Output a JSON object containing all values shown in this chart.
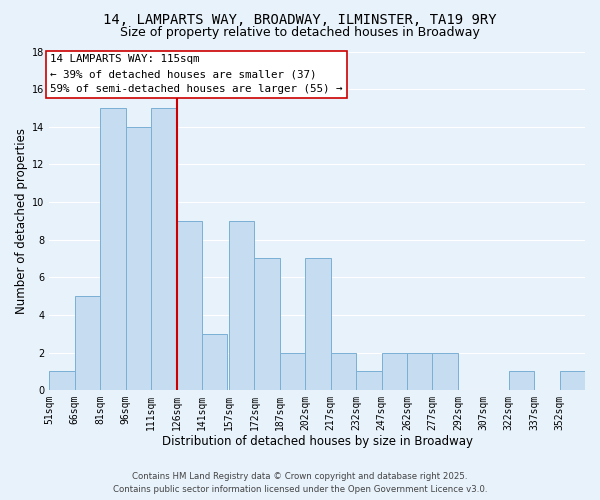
{
  "title": "14, LAMPARTS WAY, BROADWAY, ILMINSTER, TA19 9RY",
  "subtitle": "Size of property relative to detached houses in Broadway",
  "xlabel": "Distribution of detached houses by size in Broadway",
  "ylabel": "Number of detached properties",
  "footer_line1": "Contains HM Land Registry data © Crown copyright and database right 2025.",
  "footer_line2": "Contains public sector information licensed under the Open Government Licence v3.0.",
  "bin_labels": [
    "51sqm",
    "66sqm",
    "81sqm",
    "96sqm",
    "111sqm",
    "126sqm",
    "141sqm",
    "157sqm",
    "172sqm",
    "187sqm",
    "202sqm",
    "217sqm",
    "232sqm",
    "247sqm",
    "262sqm",
    "277sqm",
    "292sqm",
    "307sqm",
    "322sqm",
    "337sqm",
    "352sqm"
  ],
  "bin_edges": [
    51,
    66,
    81,
    96,
    111,
    126,
    141,
    157,
    172,
    187,
    202,
    217,
    232,
    247,
    262,
    277,
    292,
    307,
    322,
    337,
    352,
    367
  ],
  "counts": [
    1,
    5,
    15,
    14,
    15,
    9,
    3,
    9,
    7,
    2,
    7,
    2,
    1,
    2,
    2,
    2,
    0,
    0,
    1,
    0,
    1
  ],
  "bar_color": "#c6dcf0",
  "bar_edge_color": "#7ab0d4",
  "vline_color": "#cc0000",
  "property_bin_index": 4,
  "annotation_text_line1": "14 LAMPARTS WAY: 115sqm",
  "annotation_text_line2": "← 39% of detached houses are smaller (37)",
  "annotation_text_line3": "59% of semi-detached houses are larger (55) →",
  "annotation_box_color": "#ffffff",
  "annotation_box_edge_color": "#cc0000",
  "ylim": [
    0,
    18
  ],
  "yticks": [
    0,
    2,
    4,
    6,
    8,
    10,
    12,
    14,
    16,
    18
  ],
  "bg_color": "#e8f2fb",
  "grid_color": "#ffffff",
  "title_fontsize": 10,
  "subtitle_fontsize": 9,
  "axis_label_fontsize": 8.5,
  "tick_fontsize": 7,
  "annotation_fontsize": 7.8,
  "footer_fontsize": 6.2
}
